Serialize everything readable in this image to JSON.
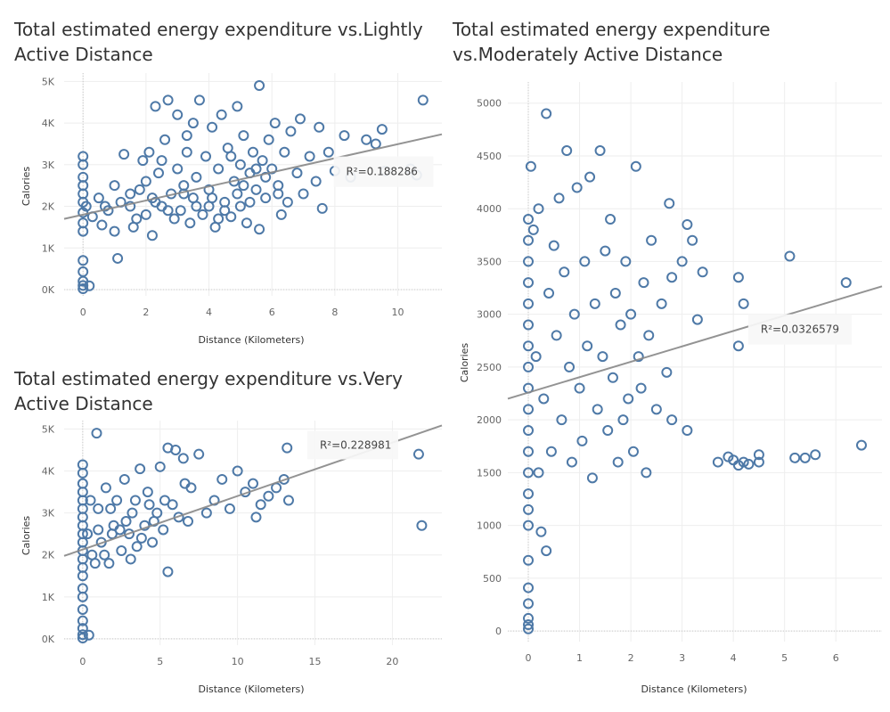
{
  "colors": {
    "marker": "#4e79a7",
    "trend": "#888888",
    "grid": "#eeeeee",
    "zero": "#c8c8c8"
  },
  "chart_data": [
    {
      "type": "scatter",
      "title": "Total estimated energy expenditure vs.Lightly Active Distance",
      "xlabel": "Distance (Kilometers)",
      "ylabel": "Calories",
      "xlim": [
        -0.6,
        11.4
      ],
      "ylim": [
        -150,
        5200
      ],
      "xticks": [
        0,
        2,
        4,
        6,
        8,
        10
      ],
      "xtick_labels": [
        "0",
        "2",
        "4",
        "6",
        "8",
        "10"
      ],
      "yticks": [
        0,
        1000,
        2000,
        3000,
        4000,
        5000
      ],
      "ytick_labels": [
        "0K",
        "1K",
        "2K",
        "3K",
        "4K",
        "5K"
      ],
      "trend": {
        "x": [
          -0.6,
          11.4
        ],
        "y": [
          1699,
          3730
        ]
      },
      "r2_label": "R²=0.188286",
      "r2_anchor": [
        8.3,
        3068
      ],
      "points": [
        [
          0,
          1850
        ],
        [
          0,
          2100
        ],
        [
          0,
          2300
        ],
        [
          0,
          2500
        ],
        [
          0,
          2700
        ],
        [
          0,
          3000
        ],
        [
          0,
          3200
        ],
        [
          0,
          1600
        ],
        [
          0,
          1400
        ],
        [
          0,
          700
        ],
        [
          0,
          430
        ],
        [
          0,
          200
        ],
        [
          0,
          100
        ],
        [
          0,
          20
        ],
        [
          0.2,
          90
        ],
        [
          0.1,
          2000
        ],
        [
          0.3,
          1750
        ],
        [
          0.5,
          2200
        ],
        [
          0.6,
          1550
        ],
        [
          0.8,
          1900
        ],
        [
          1.0,
          2500
        ],
        [
          1.0,
          1400
        ],
        [
          1.2,
          2100
        ],
        [
          1.1,
          750
        ],
        [
          1.3,
          3250
        ],
        [
          1.5,
          2000
        ],
        [
          1.6,
          1500
        ],
        [
          1.8,
          2400
        ],
        [
          1.9,
          3100
        ],
        [
          2.0,
          2600
        ],
        [
          2.0,
          1800
        ],
        [
          2.1,
          3300
        ],
        [
          2.2,
          1300
        ],
        [
          2.3,
          4400
        ],
        [
          2.4,
          2800
        ],
        [
          2.5,
          2000
        ],
        [
          2.6,
          3600
        ],
        [
          2.7,
          4550
        ],
        [
          2.8,
          2300
        ],
        [
          2.9,
          1700
        ],
        [
          3.0,
          4200
        ],
        [
          3.0,
          2900
        ],
        [
          3.1,
          1900
        ],
        [
          3.2,
          2500
        ],
        [
          3.3,
          3700
        ],
        [
          3.4,
          1600
        ],
        [
          3.5,
          4000
        ],
        [
          3.5,
          2200
        ],
        [
          3.6,
          2700
        ],
        [
          3.7,
          4550
        ],
        [
          3.8,
          1800
        ],
        [
          3.9,
          3200
        ],
        [
          4.0,
          2400
        ],
        [
          4.0,
          2000
        ],
        [
          4.1,
          3900
        ],
        [
          4.2,
          1500
        ],
        [
          4.3,
          2900
        ],
        [
          4.4,
          4200
        ],
        [
          4.5,
          2100
        ],
        [
          4.6,
          3400
        ],
        [
          4.7,
          1750
        ],
        [
          4.8,
          2600
        ],
        [
          4.9,
          4400
        ],
        [
          5.0,
          3000
        ],
        [
          5.0,
          2000
        ],
        [
          5.1,
          3700
        ],
        [
          5.2,
          1600
        ],
        [
          5.3,
          2800
        ],
        [
          5.4,
          3300
        ],
        [
          5.5,
          2400
        ],
        [
          5.6,
          4900
        ],
        [
          5.6,
          1450
        ],
        [
          5.7,
          3100
        ],
        [
          5.8,
          2200
        ],
        [
          5.9,
          3600
        ],
        [
          6.0,
          2900
        ],
        [
          6.1,
          4000
        ],
        [
          6.2,
          2500
        ],
        [
          6.3,
          1800
        ],
        [
          6.4,
          3300
        ],
        [
          6.5,
          2100
        ],
        [
          6.6,
          3800
        ],
        [
          6.8,
          2800
        ],
        [
          6.9,
          4100
        ],
        [
          7.0,
          2300
        ],
        [
          7.2,
          3200
        ],
        [
          7.4,
          2600
        ],
        [
          7.5,
          3900
        ],
        [
          7.6,
          1950
        ],
        [
          7.8,
          3300
        ],
        [
          8.0,
          2850
        ],
        [
          8.3,
          3700
        ],
        [
          8.5,
          2700
        ],
        [
          9.0,
          3600
        ],
        [
          9.3,
          3500
        ],
        [
          9.5,
          3850
        ],
        [
          9.6,
          2850
        ],
        [
          10.4,
          2900
        ],
        [
          10.6,
          2750
        ],
        [
          10.8,
          4550
        ],
        [
          1.5,
          2300
        ],
        [
          2.3,
          2100
        ],
        [
          2.7,
          1900
        ],
        [
          3.2,
          2300
        ],
        [
          3.6,
          2000
        ],
        [
          4.1,
          2200
        ],
        [
          4.5,
          1900
        ],
        [
          4.9,
          2300
        ],
        [
          5.3,
          2100
        ],
        [
          5.8,
          2700
        ],
        [
          6.2,
          2300
        ],
        [
          2.5,
          3100
        ],
        [
          3.3,
          3300
        ],
        [
          4.7,
          3200
        ],
        [
          5.5,
          2900
        ],
        [
          0.7,
          2000
        ],
        [
          1.7,
          1700
        ],
        [
          2.2,
          2200
        ],
        [
          4.3,
          1700
        ],
        [
          5.1,
          2500
        ]
      ]
    },
    {
      "type": "scatter",
      "title": "Total estimated energy expenditure vs.Moderately Active Distance",
      "xlabel": "Distance (Kilometers)",
      "ylabel": "Calories",
      "xlim": [
        -0.4,
        6.9
      ],
      "ylim": [
        -100,
        5200
      ],
      "xticks": [
        0,
        1,
        2,
        3,
        4,
        5,
        6
      ],
      "xtick_labels": [
        "0",
        "1",
        "2",
        "3",
        "4",
        "5",
        "6"
      ],
      "yticks": [
        0,
        500,
        1000,
        1500,
        2000,
        2500,
        3000,
        3500,
        4000,
        4500,
        5000
      ],
      "ytick_labels": [
        "0",
        "500",
        "1000",
        "1500",
        "2000",
        "2500",
        "3000",
        "3500",
        "4000",
        "4500",
        "5000"
      ],
      "trend": {
        "x": [
          -0.4,
          6.9
        ],
        "y": [
          2200,
          3265
        ]
      },
      "r2_label": "R²=0.0326579",
      "r2_anchor": [
        4.5,
        2950
      ],
      "points": [
        [
          0,
          1300
        ],
        [
          0,
          1500
        ],
        [
          0,
          1700
        ],
        [
          0,
          1900
        ],
        [
          0,
          2100
        ],
        [
          0,
          2300
        ],
        [
          0,
          2500
        ],
        [
          0,
          2700
        ],
        [
          0,
          2900
        ],
        [
          0,
          3100
        ],
        [
          0,
          3300
        ],
        [
          0,
          3500
        ],
        [
          0,
          3700
        ],
        [
          0,
          3900
        ],
        [
          0,
          1150
        ],
        [
          0,
          1000
        ],
        [
          0,
          670
        ],
        [
          0,
          410
        ],
        [
          0,
          260
        ],
        [
          0,
          120
        ],
        [
          0,
          60
        ],
        [
          0,
          20
        ],
        [
          0.05,
          4400
        ],
        [
          0.1,
          3800
        ],
        [
          0.15,
          2600
        ],
        [
          0.2,
          1500
        ],
        [
          0.2,
          4000
        ],
        [
          0.25,
          940
        ],
        [
          0.3,
          2200
        ],
        [
          0.35,
          4900
        ],
        [
          0.35,
          760
        ],
        [
          0.4,
          3200
        ],
        [
          0.45,
          1700
        ],
        [
          0.5,
          3650
        ],
        [
          0.55,
          2800
        ],
        [
          0.6,
          4100
        ],
        [
          0.65,
          2000
        ],
        [
          0.7,
          3400
        ],
        [
          0.75,
          4550
        ],
        [
          0.8,
          2500
        ],
        [
          0.85,
          1600
        ],
        [
          0.9,
          3000
        ],
        [
          0.95,
          4200
        ],
        [
          1.0,
          2300
        ],
        [
          1.05,
          1800
        ],
        [
          1.1,
          3500
        ],
        [
          1.15,
          2700
        ],
        [
          1.2,
          4300
        ],
        [
          1.25,
          1450
        ],
        [
          1.3,
          3100
        ],
        [
          1.35,
          2100
        ],
        [
          1.4,
          4550
        ],
        [
          1.45,
          2600
        ],
        [
          1.5,
          3600
        ],
        [
          1.55,
          1900
        ],
        [
          1.6,
          3900
        ],
        [
          1.65,
          2400
        ],
        [
          1.7,
          3200
        ],
        [
          1.75,
          1600
        ],
        [
          1.8,
          2900
        ],
        [
          1.85,
          2000
        ],
        [
          1.9,
          3500
        ],
        [
          1.95,
          2200
        ],
        [
          2.0,
          3000
        ],
        [
          2.05,
          1700
        ],
        [
          2.1,
          4400
        ],
        [
          2.15,
          2600
        ],
        [
          2.2,
          2300
        ],
        [
          2.25,
          3300
        ],
        [
          2.3,
          1500
        ],
        [
          2.35,
          2800
        ],
        [
          2.4,
          3700
        ],
        [
          2.5,
          2100
        ],
        [
          2.6,
          3100
        ],
        [
          2.7,
          2450
        ],
        [
          2.75,
          4050
        ],
        [
          2.8,
          2000
        ],
        [
          2.8,
          3350
        ],
        [
          3.0,
          3500
        ],
        [
          3.1,
          1900
        ],
        [
          3.1,
          3850
        ],
        [
          3.2,
          3700
        ],
        [
          3.3,
          2950
        ],
        [
          3.4,
          3400
        ],
        [
          3.7,
          1600
        ],
        [
          3.9,
          1650
        ],
        [
          4.1,
          3350
        ],
        [
          4.1,
          2700
        ],
        [
          4.2,
          3100
        ],
        [
          4.2,
          1600
        ],
        [
          4.3,
          1580
        ],
        [
          4.5,
          1670
        ],
        [
          4.5,
          1600
        ],
        [
          5.1,
          3550
        ],
        [
          5.2,
          1640
        ],
        [
          5.4,
          1640
        ],
        [
          5.6,
          1670
        ],
        [
          6.2,
          3300
        ],
        [
          6.5,
          1760
        ],
        [
          4.0,
          1620
        ],
        [
          4.1,
          1570
        ]
      ]
    },
    {
      "type": "scatter",
      "title": "Total estimated energy expenditure vs.Very Active Distance",
      "xlabel": "Distance (Kilometers)",
      "ylabel": "Calories",
      "xlim": [
        -1.2,
        23.2
      ],
      "ylim": [
        -150,
        5200
      ],
      "xticks": [
        0,
        5,
        10,
        15,
        20
      ],
      "xtick_labels": [
        "0",
        "5",
        "10",
        "15",
        "20"
      ],
      "yticks": [
        0,
        1000,
        2000,
        3000,
        4000,
        5000
      ],
      "ytick_labels": [
        "0K",
        "1K",
        "2K",
        "3K",
        "4K",
        "5K"
      ],
      "trend": {
        "x": [
          -1.2,
          23.2
        ],
        "y": [
          1976,
          5085
        ]
      },
      "r2_label": "R²=0.228981",
      "r2_anchor": [
        15.2,
        4700
      ],
      "points": [
        [
          0,
          1500
        ],
        [
          0,
          1700
        ],
        [
          0,
          1900
        ],
        [
          0,
          2100
        ],
        [
          0,
          2300
        ],
        [
          0,
          2500
        ],
        [
          0,
          2700
        ],
        [
          0,
          2900
        ],
        [
          0,
          3100
        ],
        [
          0,
          3300
        ],
        [
          0,
          3500
        ],
        [
          0,
          3700
        ],
        [
          0,
          3950
        ],
        [
          0,
          4150
        ],
        [
          0,
          1200
        ],
        [
          0,
          1000
        ],
        [
          0,
          700
        ],
        [
          0,
          430
        ],
        [
          0,
          250
        ],
        [
          0,
          100
        ],
        [
          0,
          20
        ],
        [
          0.4,
          90
        ],
        [
          0.3,
          2500
        ],
        [
          0.6,
          2000
        ],
        [
          0.9,
          4900
        ],
        [
          1.0,
          3100
        ],
        [
          1.2,
          2300
        ],
        [
          1.5,
          3600
        ],
        [
          1.7,
          1800
        ],
        [
          2.0,
          2700
        ],
        [
          2.2,
          3300
        ],
        [
          2.5,
          2100
        ],
        [
          2.7,
          3800
        ],
        [
          3.0,
          2500
        ],
        [
          3.2,
          3000
        ],
        [
          3.5,
          2200
        ],
        [
          3.7,
          4050
        ],
        [
          4.0,
          2700
        ],
        [
          4.2,
          3500
        ],
        [
          4.5,
          2300
        ],
        [
          4.8,
          3000
        ],
        [
          5.0,
          4100
        ],
        [
          5.2,
          2600
        ],
        [
          5.5,
          4550
        ],
        [
          5.5,
          1600
        ],
        [
          5.8,
          3200
        ],
        [
          6.0,
          4500
        ],
        [
          6.2,
          2900
        ],
        [
          6.5,
          4300
        ],
        [
          6.8,
          2800
        ],
        [
          7.0,
          3600
        ],
        [
          7.5,
          4400
        ],
        [
          8.0,
          3000
        ],
        [
          8.5,
          3300
        ],
        [
          9.0,
          3800
        ],
        [
          9.5,
          3100
        ],
        [
          10.0,
          4000
        ],
        [
          10.5,
          3500
        ],
        [
          11.0,
          3700
        ],
        [
          11.2,
          2900
        ],
        [
          11.5,
          3200
        ],
        [
          12.0,
          3400
        ],
        [
          12.5,
          3600
        ],
        [
          13.0,
          3800
        ],
        [
          13.2,
          4550
        ],
        [
          13.3,
          3300
        ],
        [
          21.7,
          4400
        ],
        [
          21.9,
          2700
        ],
        [
          1.0,
          2600
        ],
        [
          1.8,
          3100
        ],
        [
          2.8,
          2800
        ],
        [
          3.8,
          2400
        ],
        [
          4.6,
          2800
        ],
        [
          0.5,
          3300
        ],
        [
          1.4,
          2000
        ],
        [
          2.4,
          2600
        ],
        [
          3.4,
          3300
        ],
        [
          0.8,
          1800
        ],
        [
          1.9,
          2500
        ],
        [
          3.1,
          1900
        ],
        [
          4.3,
          3200
        ],
        [
          5.3,
          3300
        ],
        [
          6.6,
          3700
        ]
      ]
    }
  ]
}
